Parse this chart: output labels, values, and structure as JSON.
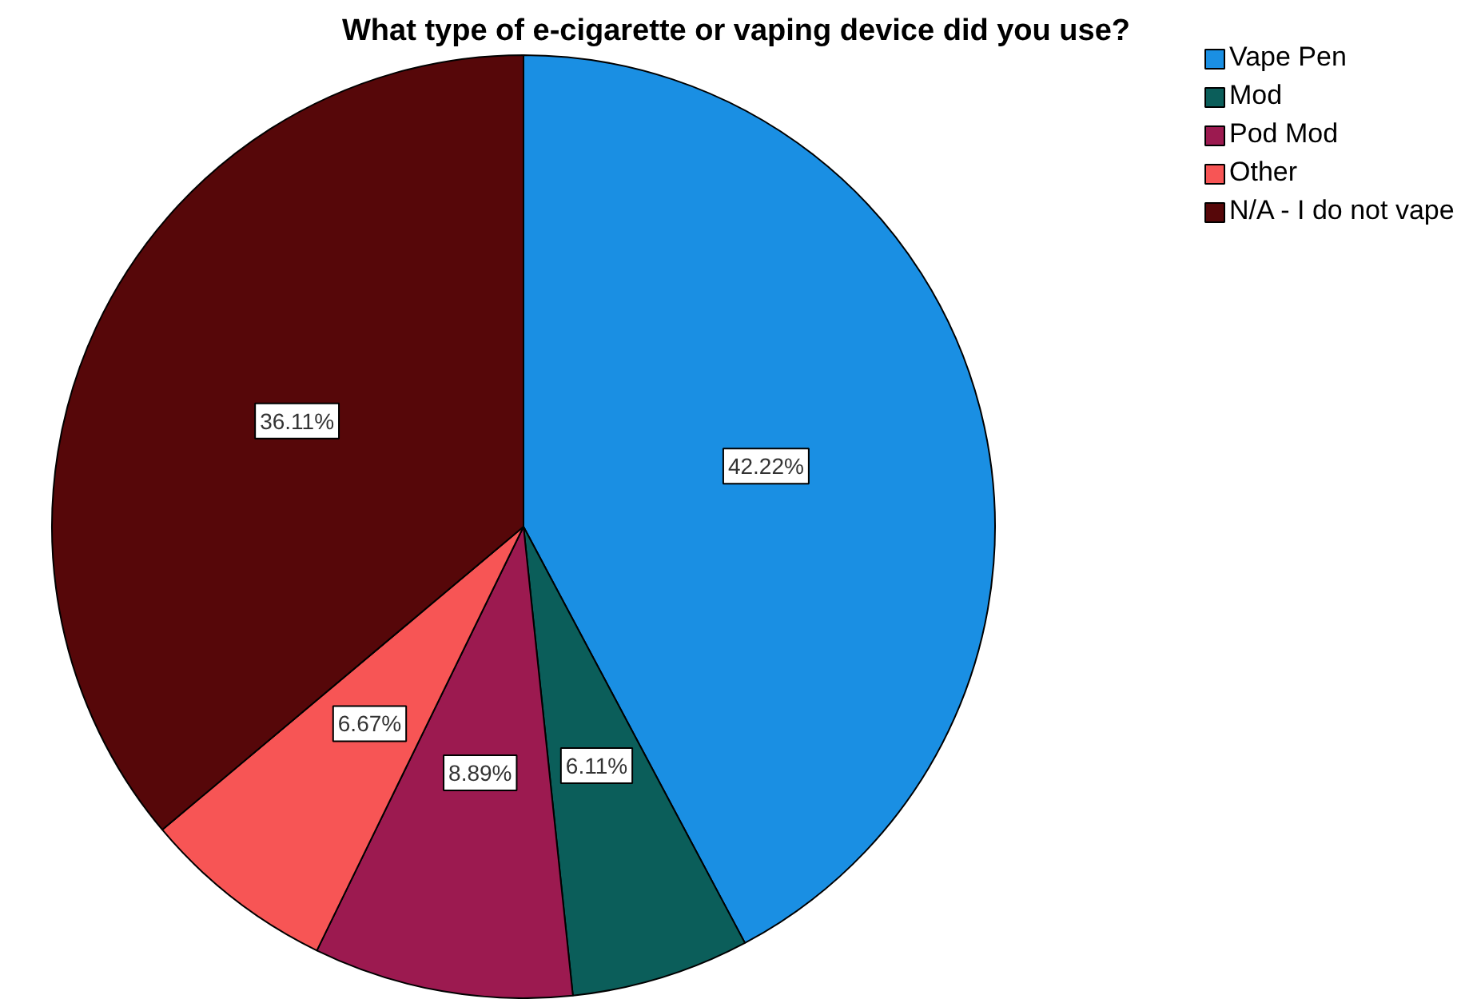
{
  "chart_data": {
    "type": "pie",
    "title": "What type of e-cigarette or vaping device did you use?",
    "categories": [
      "Vape Pen",
      "Mod",
      "Pod Mod",
      "Other",
      "N/A - I do not vape"
    ],
    "values": [
      42.22,
      6.11,
      8.89,
      6.67,
      36.11
    ],
    "colors": [
      "#1a8fe3",
      "#0b5e5a",
      "#9c1a50",
      "#f75555",
      "#560709"
    ],
    "value_labels": [
      "42.22%",
      "6.11%",
      "8.89%",
      "6.67%",
      "36.11%"
    ],
    "legend": "top right"
  }
}
